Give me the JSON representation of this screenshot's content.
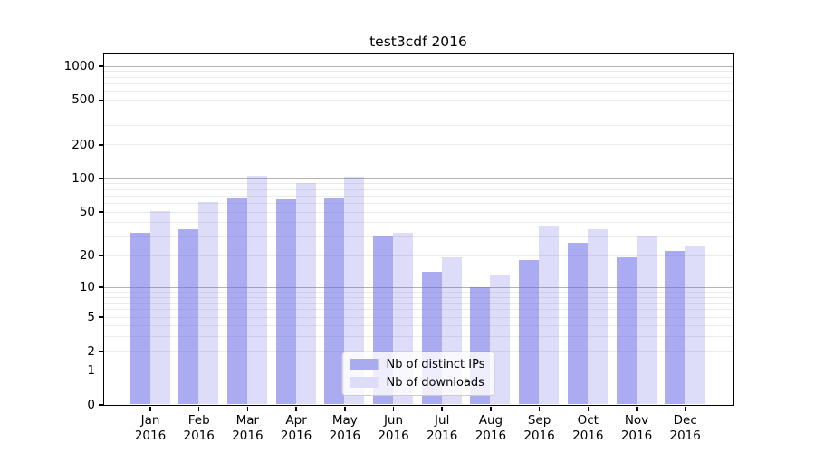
{
  "chart_data": {
    "type": "bar",
    "title": "test3cdf 2016",
    "categories": [
      "Jan",
      "Feb",
      "Mar",
      "Apr",
      "May",
      "Jun",
      "Jul",
      "Aug",
      "Sep",
      "Oct",
      "Nov",
      "Dec"
    ],
    "year": "2016",
    "series": [
      {
        "name": "Nb of distinct IPs",
        "color": "rgba(102,102,230,0.55)",
        "legend_color": "#aaaaee",
        "values": [
          32,
          35,
          67,
          65,
          67,
          30,
          14,
          10,
          18,
          26,
          19,
          22
        ]
      },
      {
        "name": "Nb of downloads",
        "color": "rgba(102,102,230,0.22)",
        "legend_color": "#ddddf9",
        "values": [
          51,
          61,
          106,
          91,
          103,
          32,
          19,
          13,
          37,
          35,
          30,
          24
        ]
      }
    ],
    "xlabel": "",
    "ylabel": "",
    "y_scale": "log1p",
    "ylim": [
      0,
      1272
    ],
    "y_ticks": [
      0,
      1,
      2,
      5,
      10,
      20,
      50,
      100,
      200,
      500,
      1000
    ],
    "grid": {
      "major_ticks": [
        1,
        10,
        100,
        1000
      ],
      "major_color": "#b3b3b3",
      "minor_color": "#ebebeb",
      "on": true
    },
    "legend": {
      "position": "lower center"
    },
    "text_color": "#000000"
  }
}
